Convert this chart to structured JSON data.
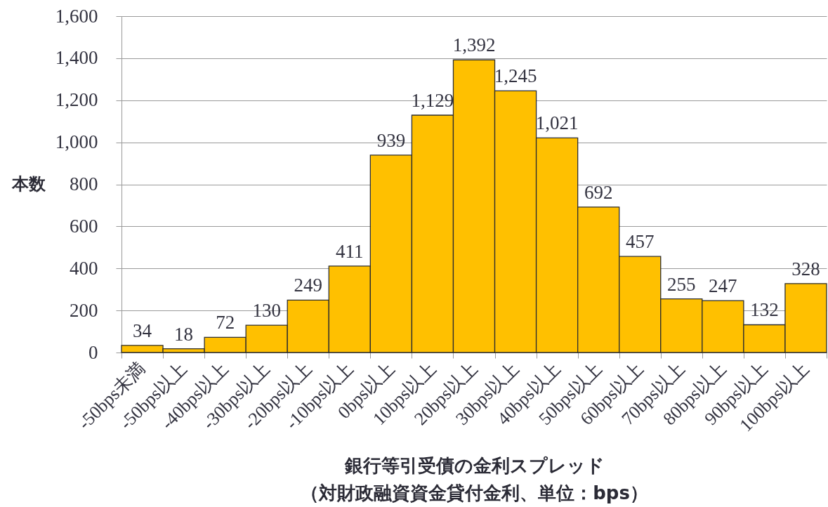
{
  "chart_data": {
    "type": "bar",
    "xlabel": "銀行等引受債の金利スプレッド（対財政融資資金貸付金利、単位：bps）",
    "ylabel": "本数",
    "categories": [
      "-50bps未満",
      "-50bps以上",
      "-40bps以上",
      "-30bps以上",
      "-20bps以上",
      "-10bps以上",
      "0bps以上",
      "10bps以上",
      "20bps以上",
      "30bps以上",
      "40bps以上",
      "50bps以上",
      "60bps以上",
      "70bps以上",
      "80bps以上",
      "90bps以上",
      "100bps以上"
    ],
    "values": [
      34,
      18,
      72,
      130,
      249,
      411,
      939,
      1129,
      1392,
      1245,
      1021,
      692,
      457,
      255,
      247,
      132,
      328
    ],
    "value_labels": [
      "34",
      "18",
      "72",
      "130",
      "249",
      "411",
      "939",
      "1,129",
      "1,392",
      "1,245",
      "1,021",
      "692",
      "457",
      "255",
      "247",
      "132",
      "328"
    ],
    "color": "#ffc000",
    "ylim": [
      0,
      1600
    ],
    "yticks": [
      0,
      200,
      400,
      600,
      800,
      {
        "value": 1000,
        "label": "1,000"
      },
      {
        "value": 1200,
        "label": "1,200"
      },
      {
        "value": 1400,
        "label": "1,400"
      },
      {
        "value": 1600,
        "label": "1,600"
      }
    ],
    "grid": "y"
  }
}
